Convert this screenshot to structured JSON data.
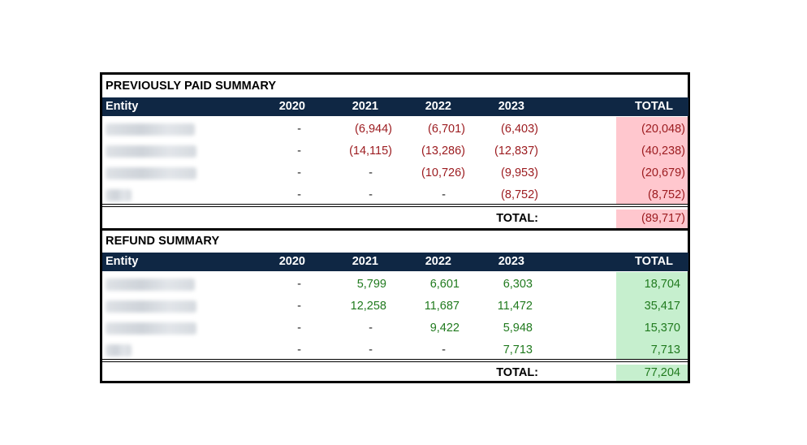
{
  "paid": {
    "title": "PREVIOUSLY PAID SUMMARY",
    "headers": [
      "Entity",
      "2020",
      "2021",
      "2022",
      "2023",
      "TOTAL"
    ],
    "rows": [
      {
        "entity_blur_width": "",
        "cells": [
          "-",
          "(6,944)",
          "(6,701)",
          "(6,403)"
        ],
        "total": "(20,048)"
      },
      {
        "entity_blur_width": "",
        "cells": [
          "-",
          "(14,115)",
          "(13,286)",
          "(12,837)"
        ],
        "total": "(40,238)"
      },
      {
        "entity_blur_width": "",
        "cells": [
          "-",
          "-",
          "(10,726)",
          "(9,953)"
        ],
        "total": "(20,679)"
      },
      {
        "entity_blur_width": "",
        "cells": [
          "-",
          "-",
          "-",
          "(8,752)"
        ],
        "total": "(8,752)"
      }
    ],
    "total_label": "TOTAL:",
    "grand_total": "(89,717)",
    "total_color": "#ffc7ce",
    "value_color": "#9c1c20"
  },
  "refund": {
    "title": "REFUND SUMMARY",
    "headers": [
      "Entity",
      "2020",
      "2021",
      "2022",
      "2023",
      "TOTAL"
    ],
    "rows": [
      {
        "cells": [
          "-",
          "5,799",
          "6,601",
          "6,303"
        ],
        "total": "18,704"
      },
      {
        "cells": [
          "-",
          "12,258",
          "11,687",
          "11,472"
        ],
        "total": "35,417"
      },
      {
        "cells": [
          "-",
          "-",
          "9,422",
          "5,948"
        ],
        "total": "15,370"
      },
      {
        "cells": [
          "-",
          "-",
          "-",
          "7,713"
        ],
        "total": "7,713"
      }
    ],
    "total_label": "TOTAL:",
    "grand_total": "77,204",
    "total_color": "#c6efce",
    "value_color": "#207a1e"
  },
  "header_color": "#0f2744"
}
